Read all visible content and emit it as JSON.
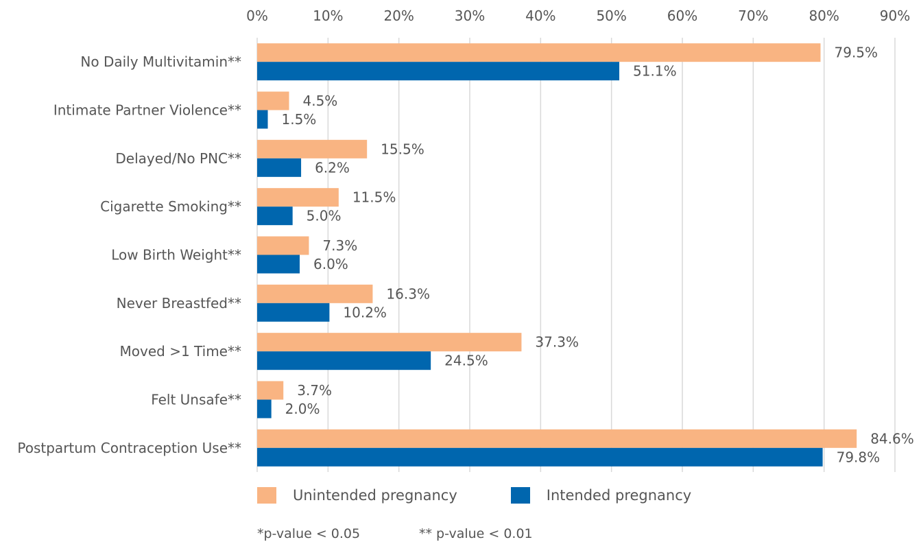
{
  "chart_data": {
    "type": "bar",
    "orientation": "horizontal",
    "categories": [
      "No Daily Multivitamin**",
      "Intimate Partner Violence**",
      "Delayed/No PNC**",
      "Cigarette Smoking**",
      "Low Birth Weight**",
      "Never Breastfed**",
      "Moved >1 Time**",
      "Felt Unsafe**",
      "Postpartum Contraception Use**"
    ],
    "series": [
      {
        "name": "Unintended pregnancy",
        "color": "#F9B482",
        "values": [
          79.5,
          4.5,
          15.5,
          11.5,
          7.3,
          16.3,
          37.3,
          3.7,
          84.6
        ],
        "labels": [
          "79.5%",
          "4.5%",
          "15.5%",
          "11.5%",
          "7.3%",
          "16.3%",
          "37.3%",
          "3.7%",
          "84.6%"
        ]
      },
      {
        "name": "Intended pregnancy",
        "color": "#0066AE",
        "values": [
          51.1,
          1.5,
          6.2,
          5.0,
          6.0,
          10.2,
          24.5,
          2.0,
          79.8
        ],
        "labels": [
          "51.1%",
          "1.5%",
          "6.2%",
          "5.0%",
          "6.0%",
          "10.2%",
          "24.5%",
          "2.0%",
          "79.8%"
        ]
      }
    ],
    "xlim": [
      0,
      90
    ],
    "x_ticks": [
      0,
      10,
      20,
      30,
      40,
      50,
      60,
      70,
      80,
      90
    ],
    "x_tick_labels": [
      "0%",
      "10%",
      "20%",
      "30%",
      "40%",
      "50%",
      "60%",
      "70%",
      "80%",
      "90%"
    ],
    "x_axis_position": "top",
    "grid": true,
    "grid_color": "#D9D9D9",
    "legend_placement": "bottom-left",
    "title": "",
    "xlabel": "",
    "ylabel": ""
  },
  "footnotes": {
    "p05": "*p-value < 0.05",
    "p01": "** p-value < 0.01"
  }
}
